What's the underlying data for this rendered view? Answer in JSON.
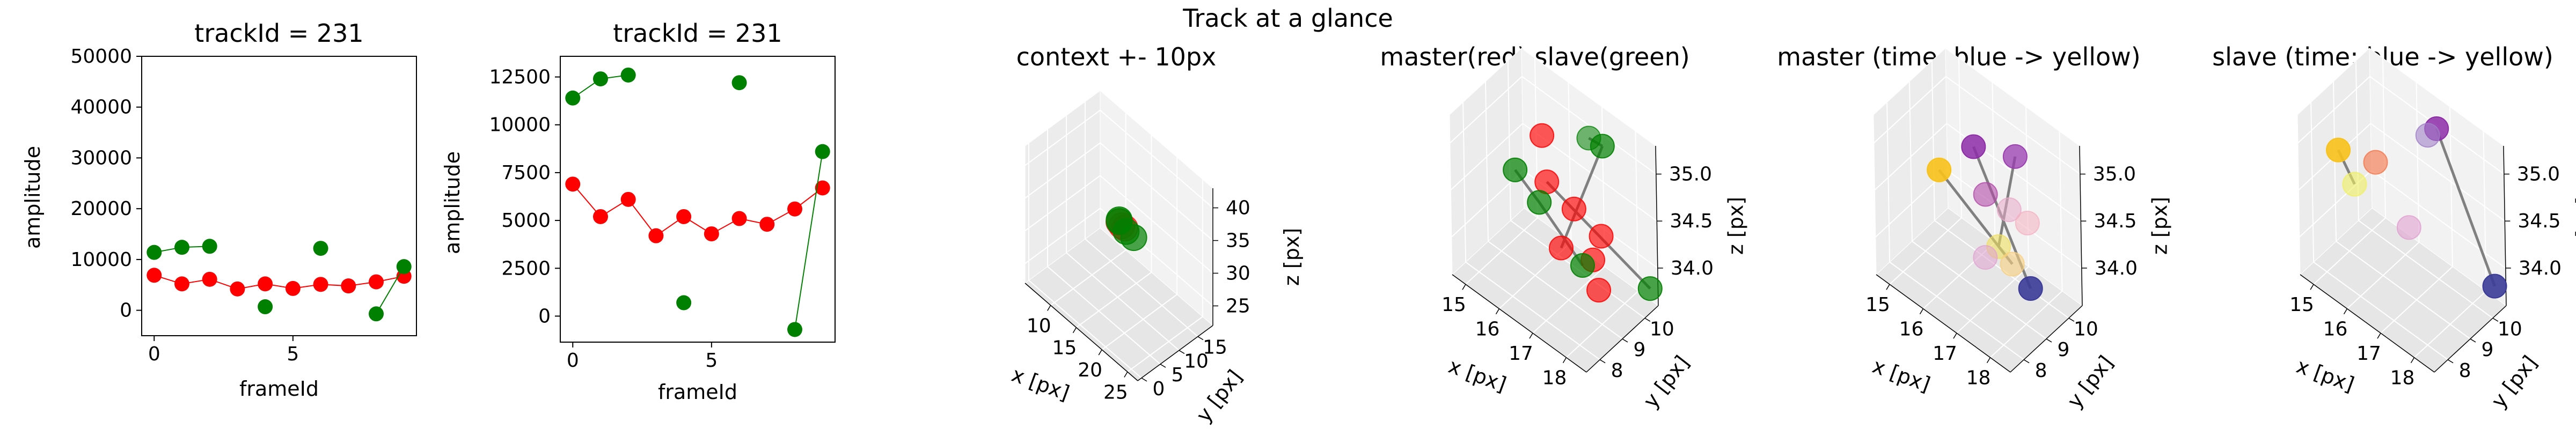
{
  "figure": {
    "suptitle": "Track at a glance"
  },
  "chart_data": [
    {
      "type": "scatter",
      "title": "trackId = 231",
      "xlabel": "frameId",
      "ylabel": "amplitude",
      "xlim": [
        -0.45,
        9.45
      ],
      "ylim": [
        -5000,
        50000
      ],
      "xticks": [
        0,
        5
      ],
      "yticks": [
        0,
        10000,
        20000,
        30000,
        40000,
        50000
      ],
      "series": [
        {
          "color": "#ff0000",
          "connected": true,
          "points": [
            [
              0,
              6900
            ],
            [
              1,
              5200
            ],
            [
              2,
              6100
            ],
            [
              3,
              4200
            ],
            [
              4,
              5200
            ],
            [
              5,
              4300
            ],
            [
              6,
              5100
            ],
            [
              7,
              4800
            ],
            [
              8,
              5600
            ],
            [
              9,
              6700
            ]
          ]
        },
        {
          "color": "#008000",
          "connected": true,
          "points": [
            [
              0,
              11400
            ],
            [
              1,
              12400
            ],
            [
              2,
              12600
            ],
            [
              4,
              700
            ],
            [
              6,
              12200
            ],
            [
              8,
              -700
            ],
            [
              9,
              8600
            ]
          ],
          "segments": [
            [
              0,
              1
            ],
            [
              1,
              2
            ],
            [
              5,
              6
            ]
          ]
        }
      ]
    },
    {
      "type": "scatter",
      "title": "trackId = 231",
      "xlabel": "frameId",
      "ylabel": "amplitude",
      "xlim": [
        -0.45,
        9.45
      ],
      "ylim": [
        -1360,
        13580
      ],
      "xticks": [
        0,
        5
      ],
      "yticks": [
        0,
        2500,
        5000,
        7500,
        10000,
        12500
      ],
      "series": [
        {
          "color": "#ff0000",
          "connected": true,
          "points": [
            [
              0,
              6900
            ],
            [
              1,
              5200
            ],
            [
              2,
              6100
            ],
            [
              3,
              4200
            ],
            [
              4,
              5200
            ],
            [
              5,
              4300
            ],
            [
              6,
              5100
            ],
            [
              7,
              4800
            ],
            [
              8,
              5600
            ],
            [
              9,
              6700
            ]
          ]
        },
        {
          "color": "#008000",
          "connected": true,
          "points": [
            [
              0,
              11400
            ],
            [
              1,
              12400
            ],
            [
              2,
              12600
            ],
            [
              4,
              700
            ],
            [
              6,
              12200
            ],
            [
              8,
              -700
            ],
            [
              9,
              8600
            ]
          ],
          "segments": [
            [
              0,
              1
            ],
            [
              1,
              2
            ],
            [
              5,
              6
            ]
          ]
        }
      ]
    },
    {
      "type": "scatter3d",
      "title": "context +- 10px",
      "xlabel": "x [px]",
      "ylabel": "y [px]",
      "zlabel": "z [px]",
      "xlim": [
        5,
        27
      ],
      "ylim": [
        -1,
        19
      ],
      "zlim": [
        22,
        43
      ],
      "xticks": [
        10,
        15,
        20,
        25
      ],
      "yticks": [
        0,
        5,
        10,
        15
      ],
      "zticks": [
        25,
        30,
        35,
        40
      ],
      "points": [
        {
          "x": 16.4,
          "y": 9.2,
          "z": 34.2,
          "color": "#ff0000",
          "alpha": 0.55
        },
        {
          "x": 16.0,
          "y": 9.0,
          "z": 34.6,
          "color": "#ff0000",
          "alpha": 0.55
        },
        {
          "x": 16.8,
          "y": 9.5,
          "z": 34.0,
          "color": "#ff0000",
          "alpha": 0.55
        },
        {
          "x": 16.2,
          "y": 8.8,
          "z": 34.9,
          "color": "#008000",
          "alpha": 0.7
        },
        {
          "x": 15.6,
          "y": 9.6,
          "z": 34.4,
          "color": "#008000",
          "alpha": 0.7
        },
        {
          "x": 17.4,
          "y": 9.0,
          "z": 34.1,
          "color": "#008000",
          "alpha": 0.7
        },
        {
          "x": 18.6,
          "y": 9.4,
          "z": 33.8,
          "color": "#008000",
          "alpha": 0.7
        }
      ],
      "lines": [
        {
          "color": "#808080",
          "points": [
            [
              16.0,
              9.0,
              34.6
            ],
            [
              17.4,
              9.0,
              34.1
            ]
          ]
        }
      ]
    },
    {
      "type": "scatter3d",
      "title": "master(red) slave(green)",
      "xlabel": "x [px]",
      "ylabel": "y [px]",
      "zlabel": "z [px]",
      "xlim": [
        14.6,
        18.6
      ],
      "ylim": [
        7.4,
        10.6
      ],
      "zlim": [
        33.6,
        35.3
      ],
      "xticks": [
        15,
        16,
        17,
        18
      ],
      "yticks": [
        8,
        9,
        10
      ],
      "zticks": [
        34.0,
        34.5,
        35.0
      ],
      "points": [
        {
          "x": 16.0,
          "y": 9.4,
          "z": 35.0,
          "color": "#ff0000",
          "alpha": 0.65
        },
        {
          "x": 16.4,
          "y": 9.0,
          "z": 34.7,
          "color": "#ff0000",
          "alpha": 0.65
        },
        {
          "x": 17.0,
          "y": 9.3,
          "z": 34.5,
          "color": "#ff0000",
          "alpha": 0.65
        },
        {
          "x": 17.6,
          "y": 9.6,
          "z": 34.3,
          "color": "#ff0000",
          "alpha": 0.65
        },
        {
          "x": 17.2,
          "y": 9.8,
          "z": 33.9,
          "color": "#ff0000",
          "alpha": 0.65
        },
        {
          "x": 17.5,
          "y": 9.6,
          "z": 33.7,
          "color": "#ff0000",
          "alpha": 0.65
        },
        {
          "x": 16.8,
          "y": 9.0,
          "z": 34.1,
          "color": "#ff0000",
          "alpha": 0.65
        },
        {
          "x": 16.0,
          "y": 8.2,
          "z": 34.9,
          "color": "#008000",
          "alpha": 0.7
        },
        {
          "x": 16.3,
          "y": 8.8,
          "z": 34.5,
          "color": "#008000",
          "alpha": 0.7
        },
        {
          "x": 17.3,
          "y": 9.2,
          "z": 34.0,
          "color": "#008000",
          "alpha": 0.7
        },
        {
          "x": 17.0,
          "y": 10.0,
          "z": 35.1,
          "color": "#008000",
          "alpha": 0.55
        },
        {
          "x": 17.2,
          "y": 10.3,
          "z": 35.0,
          "color": "#008000",
          "alpha": 0.7
        },
        {
          "x": 18.5,
          "y": 10.4,
          "z": 33.8,
          "color": "#008000",
          "alpha": 0.7
        }
      ],
      "lines": [
        {
          "color": "#808080",
          "points": [
            [
              16.0,
              8.2,
              34.9
            ],
            [
              16.3,
              8.8,
              34.5
            ],
            [
              17.3,
              9.2,
              34.0
            ]
          ]
        },
        {
          "color": "#808080",
          "points": [
            [
              17.0,
              10.0,
              35.1
            ],
            [
              17.2,
              10.3,
              35.0
            ]
          ]
        },
        {
          "color": "#808080",
          "points": [
            [
              16.4,
              9.0,
              34.7
            ],
            [
              18.5,
              10.4,
              33.8
            ]
          ]
        },
        {
          "color": "#808080",
          "points": [
            [
              17.2,
              10.3,
              35.0
            ],
            [
              16.8,
              9.0,
              34.1
            ]
          ]
        }
      ]
    },
    {
      "type": "scatter3d",
      "title": "master (time: blue -> yellow)",
      "xlabel": "x [px]",
      "ylabel": "y [px]",
      "zlabel": "z [px]",
      "xlim": [
        14.6,
        18.6
      ],
      "ylim": [
        7.4,
        10.6
      ],
      "zlim": [
        33.6,
        35.3
      ],
      "xticks": [
        15,
        16,
        17,
        18
      ],
      "yticks": [
        8,
        9,
        10
      ],
      "zticks": [
        34.0,
        34.5,
        35.0
      ],
      "points": [
        {
          "x": 16.0,
          "y": 8.2,
          "z": 34.9,
          "color": "#f8c21a",
          "alpha": 0.9
        },
        {
          "x": 16.5,
          "y": 9.0,
          "z": 35.1,
          "color": "#8e2ca8",
          "alpha": 0.85
        },
        {
          "x": 17.2,
          "y": 9.8,
          "z": 35.0,
          "color": "#9a3bb0",
          "alpha": 0.75
        },
        {
          "x": 16.7,
          "y": 9.2,
          "z": 34.6,
          "color": "#b24aa8",
          "alpha": 0.6
        },
        {
          "x": 17.2,
          "y": 9.5,
          "z": 34.5,
          "color": "#e8a8c8",
          "alpha": 0.55
        },
        {
          "x": 17.4,
          "y": 10.0,
          "z": 34.3,
          "color": "#f4b0c0",
          "alpha": 0.55
        },
        {
          "x": 17.0,
          "y": 9.3,
          "z": 34.1,
          "color": "#f0e060",
          "alpha": 0.6
        },
        {
          "x": 17.2,
          "y": 9.6,
          "z": 33.9,
          "color": "#f8d080",
          "alpha": 0.6
        },
        {
          "x": 16.8,
          "y": 9.0,
          "z": 34.0,
          "color": "#e0a0d0",
          "alpha": 0.55
        },
        {
          "x": 17.6,
          "y": 9.8,
          "z": 33.7,
          "color": "#3a3a98",
          "alpha": 0.9
        }
      ],
      "lines": [
        {
          "color": "#808080",
          "points": [
            [
              16.0,
              8.2,
              34.9
            ],
            [
              17.2,
              9.6,
              33.9
            ]
          ]
        },
        {
          "color": "#808080",
          "points": [
            [
              16.5,
              9.0,
              35.1
            ],
            [
              17.6,
              9.8,
              33.7
            ]
          ]
        },
        {
          "color": "#808080",
          "points": [
            [
              17.2,
              9.8,
              35.0
            ],
            [
              17.0,
              9.3,
              34.1
            ]
          ]
        }
      ]
    },
    {
      "type": "scatter3d",
      "title": "slave (time: blue -> yellow)",
      "xlabel": "x [px]",
      "ylabel": "y [px]",
      "zlabel": "z [px]",
      "xlim": [
        14.6,
        18.6
      ],
      "ylim": [
        7.4,
        10.6
      ],
      "zlim": [
        33.6,
        35.3
      ],
      "xticks": [
        15,
        16,
        17,
        18
      ],
      "yticks": [
        8,
        9,
        10
      ],
      "zticks": [
        34.0,
        34.5,
        35.0
      ],
      "points": [
        {
          "x": 15.4,
          "y": 8.0,
          "z": 35.0,
          "color": "#f8c21a",
          "alpha": 0.9
        },
        {
          "x": 15.6,
          "y": 8.4,
          "z": 34.6,
          "color": "#f0f060",
          "alpha": 0.6
        },
        {
          "x": 15.9,
          "y": 8.9,
          "z": 34.8,
          "color": "#f47a50",
          "alpha": 0.65
        },
        {
          "x": 16.6,
          "y": 9.3,
          "z": 34.2,
          "color": "#e0a0d0",
          "alpha": 0.6
        },
        {
          "x": 17.0,
          "y": 10.0,
          "z": 35.2,
          "color": "#8e2ca8",
          "alpha": 0.85
        },
        {
          "x": 16.8,
          "y": 9.9,
          "z": 35.1,
          "color": "#a080c8",
          "alpha": 0.6
        },
        {
          "x": 18.4,
          "y": 10.4,
          "z": 33.8,
          "color": "#3a3a98",
          "alpha": 0.9
        }
      ],
      "lines": [
        {
          "color": "#808080",
          "points": [
            [
              15.4,
              8.0,
              35.0
            ],
            [
              15.6,
              8.4,
              34.6
            ]
          ]
        },
        {
          "color": "#808080",
          "points": [
            [
              17.0,
              10.0,
              35.2
            ],
            [
              18.4,
              10.4,
              33.8
            ]
          ]
        }
      ]
    }
  ]
}
